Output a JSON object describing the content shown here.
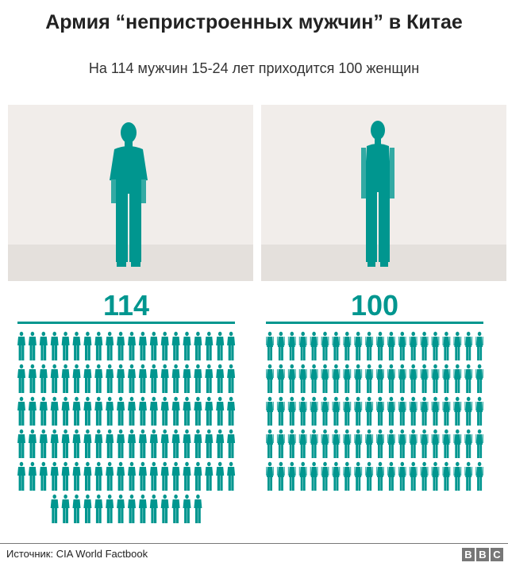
{
  "title": "Армия “непристроенных мужчин” в Китае",
  "subtitle": "На 114 мужчин 15-24 лет приходится 100 женщин",
  "footer": {
    "source": "Источник: CIA World Factbook",
    "logo": "BBC"
  },
  "colors": {
    "accent": "#00968f",
    "panel": "#f1edea",
    "floor": "#e4e0dc"
  },
  "chart_data": {
    "type": "pictogram",
    "groups": [
      {
        "icon": "man-icon",
        "label": "114",
        "value": 114
      },
      {
        "icon": "woman-icon",
        "label": "100",
        "value": 100
      }
    ],
    "icons_per_row": 20
  }
}
